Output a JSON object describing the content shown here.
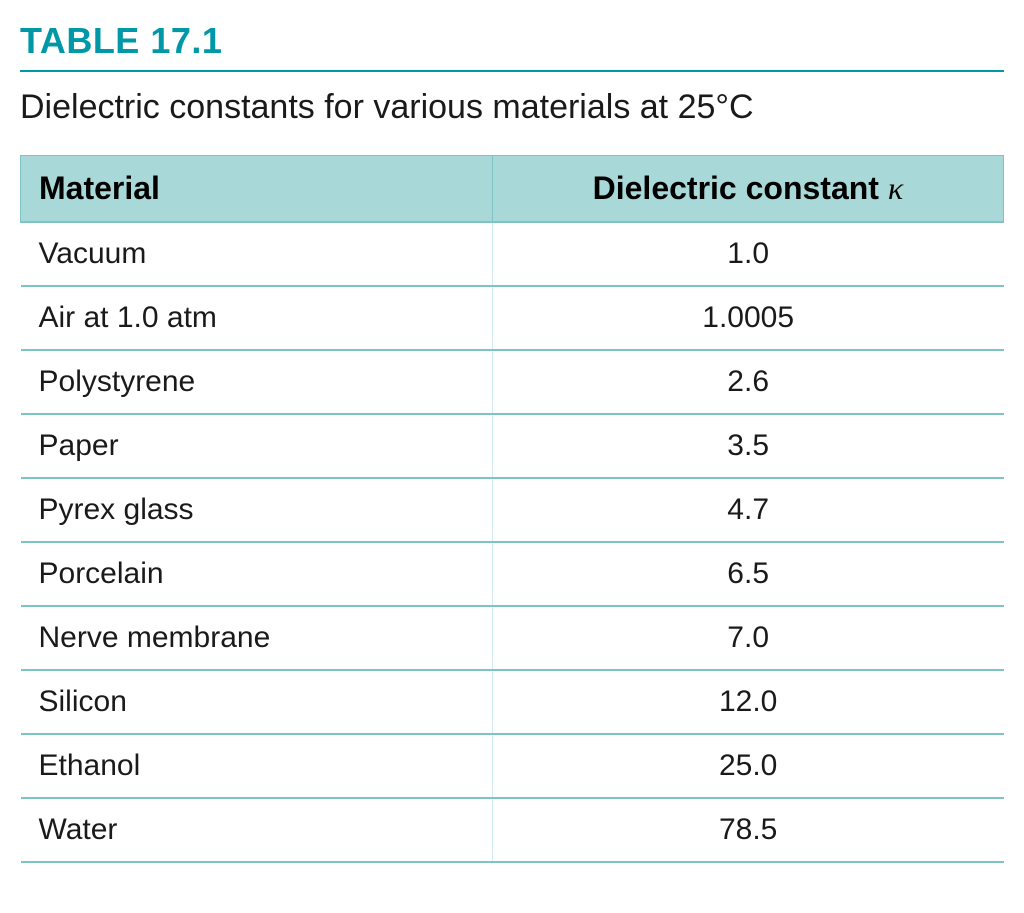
{
  "table": {
    "label": "TABLE 17.1",
    "caption": "Dielectric constants for various materials at 25°C",
    "columns": [
      {
        "header": "Material",
        "align": "left"
      },
      {
        "header_html": "Dielectric constant <span class='kappa'>κ</span>",
        "header": "Dielectric constant κ",
        "align": "center"
      }
    ],
    "rows": [
      {
        "material": "Vacuum",
        "value": "1.0"
      },
      {
        "material": "Air at 1.0 atm",
        "value": "1.0005"
      },
      {
        "material": "Polystyrene",
        "value": "2.6"
      },
      {
        "material": "Paper",
        "value": "3.5"
      },
      {
        "material": "Pyrex glass",
        "value": "4.7"
      },
      {
        "material": "Porcelain",
        "value": "6.5"
      },
      {
        "material": "Nerve membrane",
        "value": "7.0"
      },
      {
        "material": "Silicon",
        "value": "12.0"
      },
      {
        "material": "Ethanol",
        "value": "25.0"
      },
      {
        "material": "Water",
        "value": "78.5"
      }
    ],
    "styling": {
      "label_color": "#0097a7",
      "label_fontsize": 36,
      "label_fontweight": "bold",
      "caption_color": "#1a1a1a",
      "caption_fontsize": 34,
      "header_bg": "#a8d8d8",
      "header_border": "#7fc4c4",
      "header_fontsize": 32,
      "header_fontweight": "bold",
      "cell_fontsize": 30,
      "row_border_color": "#7fc4c4",
      "row_border_width": 2,
      "vertical_divider_color": "#cfeceb",
      "background_color": "#ffffff",
      "col_material_width_pct": 48,
      "col_value_width_pct": 52
    }
  }
}
